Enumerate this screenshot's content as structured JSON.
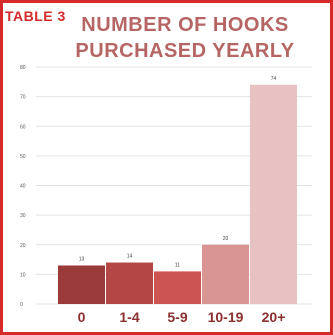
{
  "header": {
    "table_label": "TABLE 3",
    "title_line1": "NUMBER OF HOOKS",
    "title_line2": "PURCHASED YEARLY"
  },
  "colors": {
    "frame": "#d42a2a",
    "title": "#b56563",
    "bars": [
      "#9b3a3a",
      "#b54646",
      "#cc5452",
      "#d99594",
      "#e8c2c2"
    ]
  },
  "chart_data": {
    "type": "bar",
    "categories": [
      "0",
      "1-4",
      "5-9",
      "10-19",
      "20+"
    ],
    "values": [
      13,
      14,
      11,
      20,
      74
    ],
    "ylim": [
      0,
      80
    ],
    "yticks": [
      0,
      10,
      20,
      30,
      40,
      50,
      60,
      70,
      80
    ],
    "grid": true,
    "data_labels": true
  }
}
